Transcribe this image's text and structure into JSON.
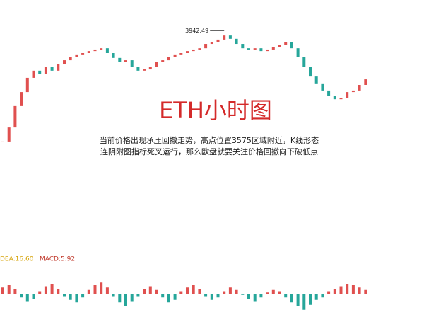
{
  "chart_data": {
    "type": "candlestick",
    "title": "ETH小时图",
    "annotation_lines": [
      "当前价格出现承压回撤走势，高点位置3575区域附近，K线形态",
      "连阴附图指标死叉运行，那么欧盘就要关注价格回撤向下破低点"
    ],
    "high_label": 3942.49,
    "up_color": "#e0504f",
    "down_color": "#26a69a",
    "ylim": [
      3480,
      3980
    ],
    "closes": [
      3508,
      3563,
      3647,
      3702,
      3758,
      3786,
      3772,
      3800,
      3786,
      3813,
      3827,
      3841,
      3847,
      3855,
      3863,
      3869,
      3874,
      3855,
      3836,
      3819,
      3827,
      3800,
      3786,
      3791,
      3800,
      3819,
      3827,
      3841,
      3847,
      3855,
      3863,
      3869,
      3874,
      3891,
      3897,
      3908,
      3924,
      3911,
      3891,
      3874,
      3869,
      3874,
      3863,
      3869,
      3880,
      3886,
      3897,
      3874,
      3841,
      3800,
      3763,
      3736,
      3708,
      3688,
      3674,
      3680,
      3702,
      3708,
      3730,
      3752
    ],
    "macd": {
      "dea_label": "DEA:16.60",
      "macd_label": "MACD:5.92",
      "ylim": [
        -40,
        40
      ],
      "histogram": [
        10,
        14,
        8,
        -6,
        -12,
        -8,
        4,
        12,
        16,
        8,
        -4,
        -10,
        -14,
        -6,
        6,
        14,
        18,
        10,
        -4,
        -14,
        -20,
        -12,
        -4,
        8,
        12,
        6,
        -6,
        -14,
        -10,
        4,
        10,
        14,
        8,
        -4,
        -10,
        -6,
        4,
        10,
        6,
        -2,
        -8,
        -12,
        -6,
        2,
        6,
        4,
        -6,
        -14,
        -20,
        -26,
        -18,
        -10,
        -6,
        4,
        8,
        12,
        16,
        14,
        10,
        6
      ]
    }
  }
}
